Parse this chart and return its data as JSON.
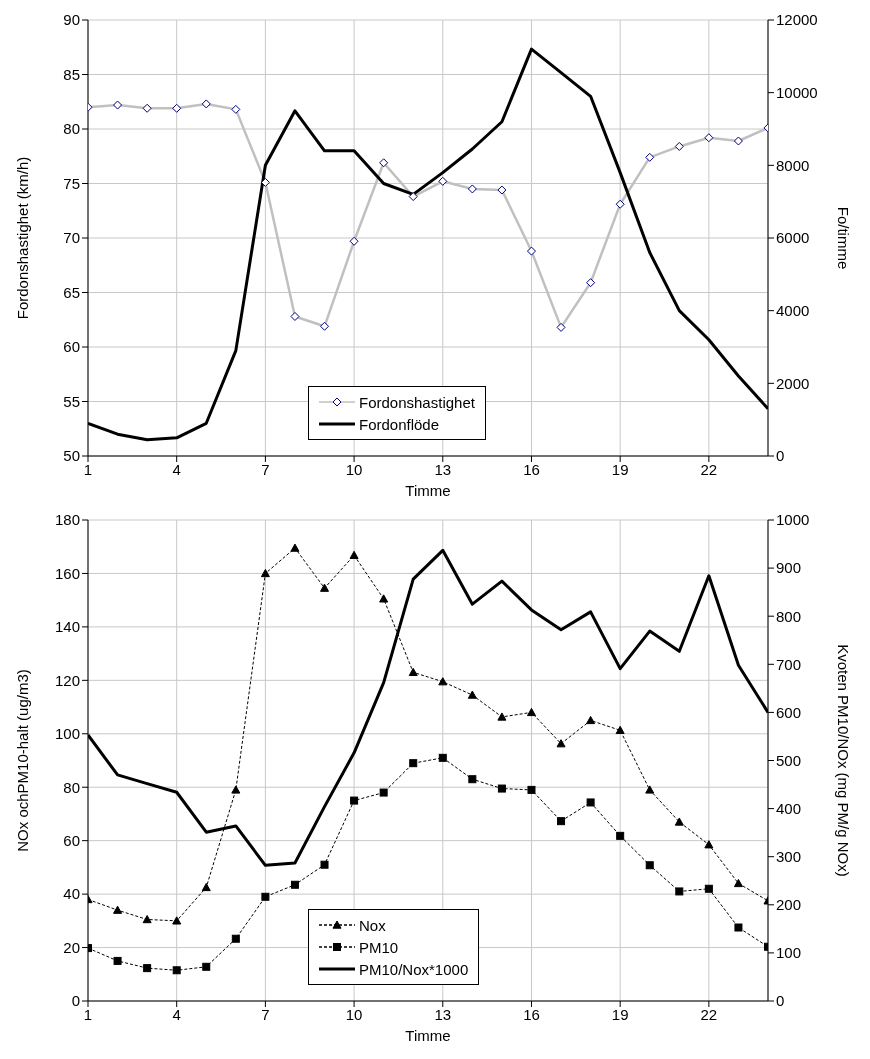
{
  "chart_data": [
    {
      "type": "line",
      "xlabel": "Timme",
      "ylabel": "Fordonshastighet (km/h)",
      "y2label": "Fo/timme",
      "x": [
        1,
        2,
        3,
        4,
        5,
        6,
        7,
        8,
        9,
        10,
        11,
        12,
        13,
        14,
        15,
        16,
        17,
        18,
        19,
        20,
        21,
        22,
        23,
        24
      ],
      "xlim": [
        1,
        24
      ],
      "xticks": [
        1,
        4,
        7,
        10,
        13,
        16,
        19,
        22
      ],
      "ylim": [
        50,
        90
      ],
      "yticks": [
        50,
        55,
        60,
        65,
        70,
        75,
        80,
        85,
        90
      ],
      "y2lim": [
        0,
        12000
      ],
      "y2ticks": [
        0,
        2000,
        4000,
        6000,
        8000,
        10000,
        12000
      ],
      "grid": true,
      "legend": "bottom",
      "series": [
        {
          "name": "Fordonshastighet",
          "color": "#c0c0c0",
          "marker": "diamond",
          "line_style": "solid",
          "values": [
            82.0,
            82.2,
            81.9,
            81.9,
            82.3,
            81.8,
            75.1,
            62.8,
            61.9,
            69.7,
            76.9,
            73.8,
            75.2,
            74.5,
            74.4,
            68.8,
            61.8,
            65.9,
            73.1,
            77.4,
            78.4,
            79.2,
            78.9,
            80.1
          ]
        },
        {
          "name": "Fordonflöde",
          "color": "#000000",
          "marker": "none",
          "line_style": "solid",
          "axis": "y2",
          "values": [
            900,
            600,
            450,
            500,
            900,
            2900,
            8000,
            9500,
            8400,
            8400,
            7500,
            7200,
            7800,
            8450,
            9200,
            11200,
            10550,
            9900,
            7800,
            5600,
            4000,
            3200,
            2200,
            1300
          ]
        }
      ]
    },
    {
      "type": "line",
      "xlabel": "Timme",
      "ylabel": "NOx ochPM10-halt (ug/m3)",
      "y2label": "Kvoten PM10/NOx (mg PM/g NOx)",
      "x": [
        1,
        2,
        3,
        4,
        5,
        6,
        7,
        8,
        9,
        10,
        11,
        12,
        13,
        14,
        15,
        16,
        17,
        18,
        19,
        20,
        21,
        22,
        23,
        24
      ],
      "xlim": [
        1,
        24
      ],
      "xticks": [
        1,
        4,
        7,
        10,
        13,
        16,
        19,
        22
      ],
      "ylim": [
        0,
        180
      ],
      "yticks": [
        0,
        20,
        40,
        60,
        80,
        100,
        120,
        140,
        160,
        180
      ],
      "y2lim": [
        0,
        1000
      ],
      "y2ticks": [
        0,
        100,
        200,
        300,
        400,
        500,
        600,
        700,
        800,
        900,
        1000
      ],
      "grid": true,
      "legend": "bottom",
      "series": [
        {
          "name": "Nox",
          "color": "#000000",
          "marker": "triangle",
          "line_style": "dashed",
          "values": [
            38,
            34,
            30.5,
            30,
            42.5,
            79,
            160,
            169.5,
            154.5,
            166.8,
            150.5,
            123,
            119.5,
            114.5,
            106.3,
            108,
            96.3,
            105,
            101.3,
            79,
            67,
            58.5,
            44,
            37.5
          ]
        },
        {
          "name": "PM10",
          "color": "#000000",
          "marker": "square",
          "line_style": "dashed",
          "values": [
            19.8,
            15,
            12.3,
            11.5,
            12.8,
            23.3,
            39,
            43.5,
            51,
            75,
            78,
            89,
            91,
            83,
            79.5,
            79,
            67.3,
            74.3,
            61.8,
            50.8,
            41,
            42,
            27.5,
            20.3
          ]
        },
        {
          "name": "PM10/Nox*1000",
          "color": "#000000",
          "marker": "none",
          "line_style": "solid",
          "axis": "y2",
          "values": [
            553,
            470,
            452,
            434,
            351,
            364,
            282,
            287,
            404,
            516,
            662,
            877,
            937,
            825,
            873,
            813,
            772,
            809,
            691,
            769,
            727,
            884,
            698,
            600
          ]
        }
      ]
    }
  ]
}
